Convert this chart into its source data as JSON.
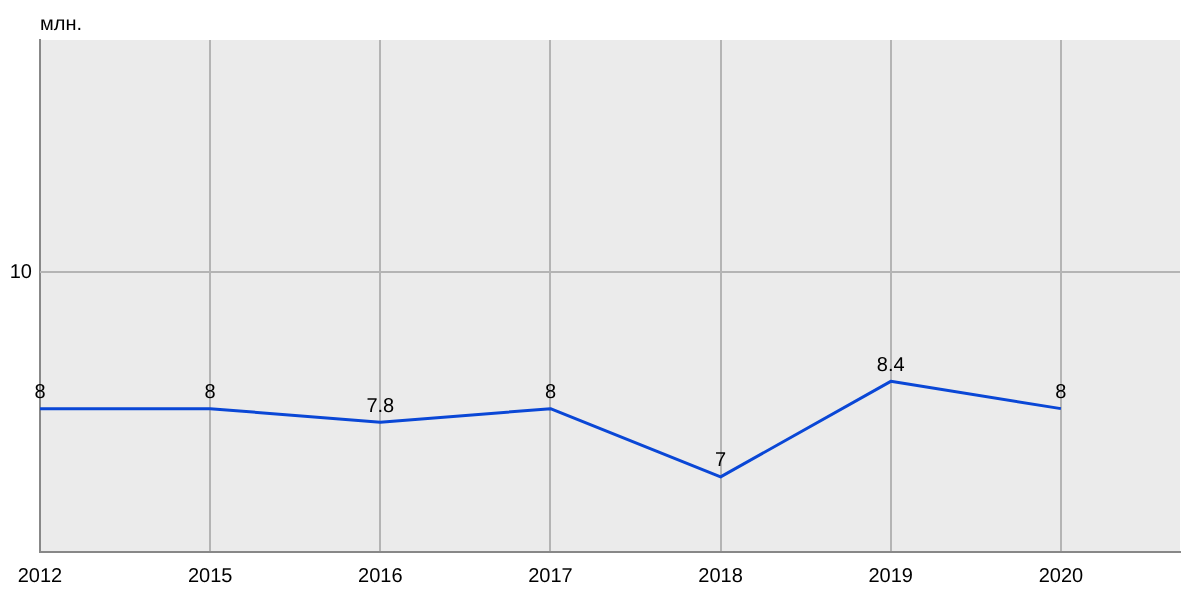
{
  "chart_data": {
    "type": "line",
    "ylabel": "млн.",
    "categories": [
      "2012",
      "2015",
      "2016",
      "2017",
      "2018",
      "2019",
      "2020"
    ],
    "values": [
      8,
      8,
      7.8,
      8,
      7,
      8.4,
      8
    ],
    "color": "#0a47d6",
    "ylim": [
      5.9,
      13.4
    ],
    "ref_lines": [
      {
        "axis": "y",
        "value": 10,
        "label": "10",
        "color": "#b4b4b4"
      }
    ],
    "grid": "x",
    "data_labels": true,
    "marker": "none",
    "line_style": "solid"
  }
}
